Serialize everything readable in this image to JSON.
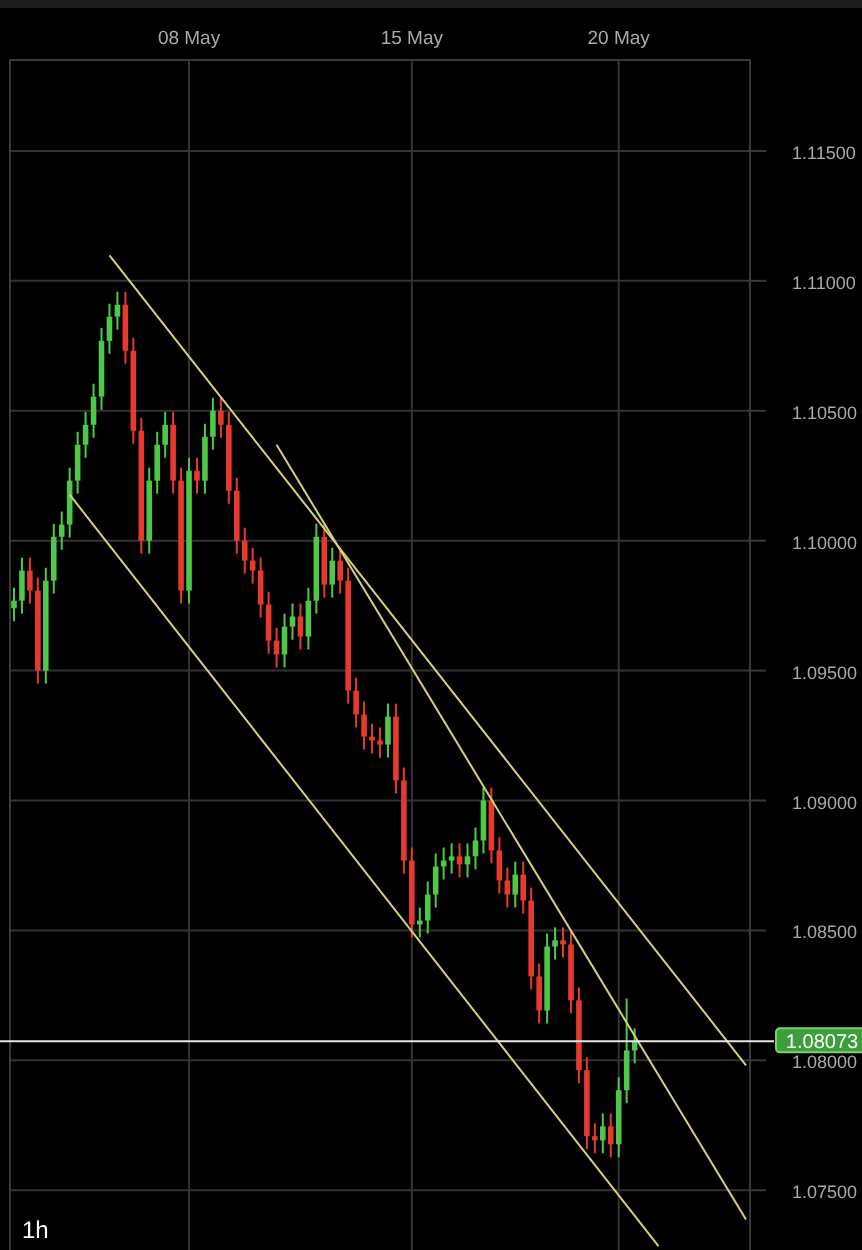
{
  "chart_data": {
    "type": "candlestick",
    "categories": [
      null,
      null,
      null,
      null,
      null,
      null,
      null,
      null,
      null,
      null,
      null,
      null,
      null,
      null,
      null,
      null,
      null,
      null,
      null,
      null,
      null,
      null,
      "08 May",
      null,
      null,
      null,
      null,
      null,
      null,
      null,
      null,
      null,
      null,
      null,
      null,
      null,
      null,
      null,
      null,
      null,
      null,
      null,
      null,
      null,
      null,
      null,
      null,
      null,
      null,
      null,
      "15 May",
      null,
      null,
      null,
      null,
      null,
      null,
      null,
      null,
      null,
      null,
      null,
      null,
      null,
      null,
      null,
      null,
      null,
      null,
      null,
      null,
      null,
      null,
      null,
      null,
      null,
      "20 May",
      null,
      null,
      null,
      null,
      null,
      null,
      null,
      null,
      null,
      null,
      null,
      null,
      null,
      null,
      null,
      null
    ],
    "ohlc": [
      [
        1.0974,
        1.09819,
        1.0969,
        1.09769
      ],
      [
        1.09769,
        1.09935,
        1.09719,
        1.09885
      ],
      [
        1.09885,
        1.09935,
        1.09758,
        1.09808
      ],
      [
        1.09808,
        1.09858,
        1.0945,
        1.095
      ],
      [
        1.095,
        1.09896,
        1.0945,
        1.09846
      ],
      [
        1.09846,
        1.10065,
        1.09796,
        1.10015
      ],
      [
        1.10015,
        1.10112,
        1.09965,
        1.10062
      ],
      [
        1.10062,
        1.10281,
        1.10012,
        1.10231
      ],
      [
        1.10231,
        1.10419,
        1.10181,
        1.10369
      ],
      [
        1.10369,
        1.10496,
        1.10319,
        1.10446
      ],
      [
        1.10446,
        1.10604,
        1.10396,
        1.10554
      ],
      [
        1.10554,
        1.10819,
        1.10504,
        1.10769
      ],
      [
        1.10769,
        1.10912,
        1.10719,
        1.10862
      ],
      [
        1.10862,
        1.10958,
        1.10812,
        1.10908
      ],
      [
        1.10908,
        1.10958,
        1.10681,
        1.10731
      ],
      [
        1.10731,
        1.10781,
        1.10373,
        1.10423
      ],
      [
        1.10423,
        1.10473,
        1.0995,
        1.1
      ],
      [
        1.1,
        1.10281,
        1.0995,
        1.10231
      ],
      [
        1.10231,
        1.10419,
        1.10181,
        1.10369
      ],
      [
        1.10369,
        1.10496,
        1.10319,
        1.10446
      ],
      [
        1.10446,
        1.10496,
        1.10181,
        1.10231
      ],
      [
        1.10231,
        1.10281,
        1.09758,
        1.09808
      ],
      [
        1.09808,
        1.10319,
        1.09758,
        1.10269
      ],
      [
        1.10269,
        1.10319,
        1.10181,
        1.10231
      ],
      [
        1.10231,
        1.1045,
        1.10181,
        1.104
      ],
      [
        1.104,
        1.1055,
        1.1035,
        1.105
      ],
      [
        1.105,
        1.1055,
        1.10396,
        1.10446
      ],
      [
        1.10446,
        1.10496,
        1.10142,
        1.10192
      ],
      [
        1.10192,
        1.10242,
        1.0995,
        1.1
      ],
      [
        1.1,
        1.1005,
        1.09873,
        1.09923
      ],
      [
        1.09923,
        1.09973,
        1.09835,
        1.09885
      ],
      [
        1.09885,
        1.09935,
        1.09704,
        1.09754
      ],
      [
        1.09754,
        1.09804,
        1.09565,
        1.09615
      ],
      [
        1.09615,
        1.09665,
        1.09512,
        1.09562
      ],
      [
        1.09562,
        1.09719,
        1.09512,
        1.09669
      ],
      [
        1.09669,
        1.09758,
        1.09619,
        1.09708
      ],
      [
        1.09708,
        1.09758,
        1.09581,
        1.09631
      ],
      [
        1.09631,
        1.09819,
        1.09581,
        1.09769
      ],
      [
        1.09769,
        1.10065,
        1.09719,
        1.10015
      ],
      [
        1.10015,
        1.10065,
        1.09781,
        1.09831
      ],
      [
        1.09831,
        1.09973,
        1.09781,
        1.09923
      ],
      [
        1.09923,
        1.09973,
        1.09796,
        1.09846
      ],
      [
        1.09846,
        1.09896,
        1.09373,
        1.09423
      ],
      [
        1.09423,
        1.09473,
        1.09281,
        1.09331
      ],
      [
        1.09331,
        1.09381,
        1.09196,
        1.09246
      ],
      [
        1.09246,
        1.09296,
        1.09181,
        1.09231
      ],
      [
        1.09231,
        1.09281,
        1.09165,
        1.09215
      ],
      [
        1.09215,
        1.09373,
        1.09165,
        1.09323
      ],
      [
        1.09323,
        1.09373,
        1.09027,
        1.09077
      ],
      [
        1.09077,
        1.09127,
        1.08719,
        1.08769
      ],
      [
        1.08769,
        1.08819,
        1.08473,
        1.08523
      ],
      [
        1.08523,
        1.08588,
        1.08473,
        1.08538
      ],
      [
        1.08538,
        1.08688,
        1.08488,
        1.08638
      ],
      [
        1.08638,
        1.08796,
        1.08588,
        1.08746
      ],
      [
        1.08746,
        1.08819,
        1.08696,
        1.08769
      ],
      [
        1.08769,
        1.08835,
        1.08719,
        1.08785
      ],
      [
        1.08785,
        1.08835,
        1.08704,
        1.08754
      ],
      [
        1.08754,
        1.08835,
        1.08704,
        1.08785
      ],
      [
        1.08785,
        1.08896,
        1.08735,
        1.08846
      ],
      [
        1.08846,
        1.0905,
        1.08796,
        1.09
      ],
      [
        1.09,
        1.0905,
        1.08758,
        1.08808
      ],
      [
        1.08808,
        1.08858,
        1.08642,
        1.08692
      ],
      [
        1.08692,
        1.08742,
        1.08588,
        1.08638
      ],
      [
        1.08638,
        1.08765,
        1.08588,
        1.08715
      ],
      [
        1.08715,
        1.08765,
        1.08565,
        1.08615
      ],
      [
        1.08615,
        1.08665,
        1.08273,
        1.08323
      ],
      [
        1.08323,
        1.08373,
        1.08142,
        1.08192
      ],
      [
        1.08192,
        1.08488,
        1.08142,
        1.08438
      ],
      [
        1.08438,
        1.08512,
        1.08388,
        1.08462
      ],
      [
        1.08462,
        1.08512,
        1.08396,
        1.08446
      ],
      [
        1.08446,
        1.08496,
        1.08181,
        1.08231
      ],
      [
        1.08231,
        1.08281,
        1.07912,
        1.07962
      ],
      [
        1.07962,
        1.08012,
        1.07658,
        1.07708
      ],
      [
        1.07708,
        1.07758,
        1.07642,
        1.07692
      ],
      [
        1.07692,
        1.07796,
        1.07642,
        1.07746
      ],
      [
        1.07746,
        1.07796,
        1.07627,
        1.07677
      ],
      [
        1.07677,
        1.07935,
        1.07627,
        1.07885
      ],
      [
        1.07885,
        1.08238,
        1.07835,
        1.08038
      ],
      [
        1.08038,
        1.08123,
        1.07988,
        1.08073
      ],
      null,
      null,
      null,
      null,
      null,
      null,
      null,
      null,
      null,
      null,
      null,
      null,
      null,
      null
    ],
    "series": [
      {
        "type": "line",
        "values": [
          null,
          null,
          null,
          null,
          null,
          null,
          null,
          null,
          null,
          null,
          null,
          null,
          1.11098,
          null,
          null,
          null,
          null,
          null,
          null,
          null,
          null,
          null,
          null,
          null,
          null,
          null,
          null,
          null,
          null,
          null,
          null,
          null,
          null,
          null,
          null,
          null,
          null,
          null,
          null,
          null,
          null,
          null,
          null,
          null,
          null,
          null,
          null,
          null,
          null,
          null,
          null,
          null,
          null,
          null,
          null,
          null,
          null,
          null,
          null,
          null,
          null,
          null,
          null,
          null,
          null,
          null,
          null,
          null,
          null,
          null,
          null,
          null,
          null,
          null,
          null,
          null,
          null,
          null,
          null,
          null,
          null,
          null,
          null,
          null,
          null,
          null,
          null,
          null,
          null,
          null,
          null,
          null,
          1.07981
        ],
        "color": "#d6d07c"
      },
      {
        "type": "line",
        "values": [
          null,
          null,
          null,
          null,
          null,
          null,
          null,
          1.10177,
          null,
          null,
          null,
          null,
          null,
          null,
          null,
          null,
          null,
          null,
          null,
          null,
          null,
          null,
          null,
          null,
          null,
          null,
          null,
          null,
          null,
          null,
          null,
          null,
          null,
          null,
          null,
          null,
          null,
          null,
          null,
          null,
          null,
          null,
          null,
          null,
          null,
          null,
          null,
          null,
          null,
          null,
          null,
          null,
          null,
          null,
          null,
          null,
          null,
          null,
          null,
          null,
          null,
          null,
          null,
          null,
          null,
          null,
          null,
          null,
          null,
          null,
          null,
          null,
          null,
          null,
          null,
          null,
          null,
          null,
          null,
          null,
          null,
          1.07285,
          null,
          null,
          null,
          null,
          null,
          null,
          null,
          null,
          null,
          null,
          null
        ],
        "color": "#d6d07c"
      },
      {
        "type": "line",
        "values": [
          null,
          null,
          null,
          null,
          null,
          null,
          null,
          null,
          null,
          null,
          null,
          null,
          null,
          null,
          null,
          null,
          null,
          null,
          null,
          null,
          null,
          null,
          null,
          null,
          null,
          null,
          null,
          null,
          null,
          null,
          null,
          null,
          null,
          1.10369,
          null,
          null,
          null,
          null,
          null,
          null,
          null,
          null,
          null,
          null,
          null,
          null,
          null,
          null,
          null,
          null,
          null,
          null,
          null,
          null,
          null,
          null,
          null,
          null,
          null,
          null,
          null,
          null,
          null,
          null,
          null,
          null,
          null,
          null,
          null,
          null,
          null,
          null,
          null,
          null,
          null,
          null,
          null,
          null,
          null,
          null,
          null,
          null,
          null,
          null,
          null,
          null,
          null,
          null,
          null,
          null,
          null,
          null,
          1.07387
        ],
        "color": "#d6d07c"
      }
    ],
    "ylim": [
      1.0727,
      1.1185
    ],
    "yticks": [
      {
        "value": 1.075,
        "label": "1.07500"
      },
      {
        "value": 1.08,
        "label": "1.08000"
      },
      {
        "value": 1.085,
        "label": "1.08500"
      },
      {
        "value": 1.09,
        "label": "1.09000"
      },
      {
        "value": 1.095,
        "label": "1.09500"
      },
      {
        "value": 1.1,
        "label": "1.10000"
      },
      {
        "value": 1.105,
        "label": "1.10500"
      },
      {
        "value": 1.11,
        "label": "1.11000"
      },
      {
        "value": 1.115,
        "label": "1.11500"
      }
    ],
    "ref_lines": [
      {
        "axis": "y",
        "value": 1.08073,
        "label": "1.08073",
        "color": "#e6e6e6"
      }
    ],
    "annotations": [
      "1h"
    ],
    "grid": true
  }
}
